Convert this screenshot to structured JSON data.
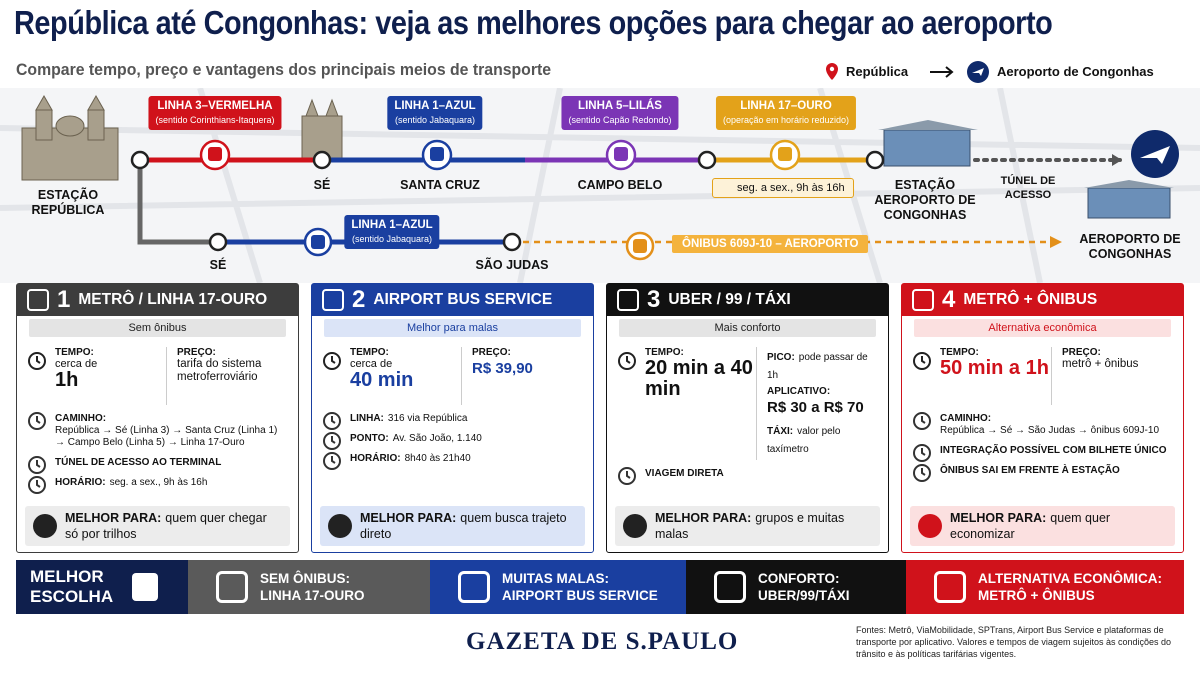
{
  "header": {
    "title": "República até Congonhas: veja as melhores opções para chegar ao aeroporto",
    "subtitle": "Compare tempo, preço e vantagens dos principais meios de transporte",
    "origin": "República",
    "destination": "Aeroporto de Congonhas"
  },
  "map": {
    "lines": [
      {
        "name": "LINHA 3–VERMELHA",
        "note": "(sentido Corinthians-Itaquera)"
      },
      {
        "name": "LINHA 1–AZUL",
        "note": "(sentido Jabaquara)"
      },
      {
        "name": "LINHA 5–LILÁS",
        "note": "(sentido Capão Redondo)"
      },
      {
        "name": "LINHA 17–OURO",
        "note": "(operação em horário reduzido)"
      },
      {
        "name": "LINHA 1–AZUL",
        "note": "(sentido Jabaquara)"
      }
    ],
    "stations": [
      "ESTAÇÃO REPÚBLICA",
      "SÉ",
      "SANTA CRUZ",
      "CAMPO BELO",
      "ESTAÇÃO AEROPORTO DE CONGONHAS",
      "SÉ",
      "SÃO JUDAS",
      "AEROPORTO DE CONGONHAS"
    ],
    "schedule": "seg. a sex., 9h às 16h",
    "tunnel": "TÚNEL DE ACESSO",
    "bus": "ÔNIBUS 609J-10 – AEROPORTO"
  },
  "cards": [
    {
      "number": "1",
      "title": "METRÔ / LINHA 17-OURO",
      "tag": "Sem ônibus",
      "stats": [
        [
          {
            "label": "TEMPO:",
            "pre": "cerca de",
            "big": "1h"
          }
        ],
        [
          {
            "label": "PREÇO:",
            "text": "tarifa do sistema metroferroviário"
          }
        ]
      ],
      "items": [
        {
          "label": "CAMINHO:",
          "text": "República → Sé (Linha 3) → Santa Cruz (Linha 1) → Campo Belo (Linha 5) → Linha 17-Ouro"
        },
        {
          "label": "TÚNEL DE ACESSO AO TERMINAL"
        },
        {
          "label": "HORÁRIO:",
          "text": "seg. a sex., 9h às 16h"
        }
      ],
      "best": {
        "label": "MELHOR PARA:",
        "text": "quem quer chegar só por trilhos"
      }
    },
    {
      "number": "2",
      "title": "AIRPORT BUS SERVICE",
      "tag": "Melhor para malas",
      "stats": [
        [
          {
            "label": "TEMPO:",
            "pre": "cerca de",
            "big": "40 min"
          }
        ],
        [
          {
            "label": "PREÇO:",
            "big": "R$ 39,90"
          }
        ]
      ],
      "items": [
        {
          "label": "LINHA:",
          "text": "316 via República"
        },
        {
          "label": "PONTO:",
          "text": "Av. São João, 1.140"
        },
        {
          "label": "HORÁRIO:",
          "text": "8h40 às 21h40"
        }
      ],
      "best": {
        "label": "MELHOR PARA:",
        "text": "quem busca trajeto direto"
      }
    },
    {
      "number": "3",
      "title": "UBER / 99 / TÁXI",
      "tag": "Mais conforto",
      "stats": [
        [
          {
            "label": "TEMPO:",
            "big": "20 min a 40 min"
          }
        ],
        [
          {
            "label": "PICO:",
            "text": "pode passar de 1h"
          },
          {
            "label": "APLICATIVO:",
            "big": "R$ 30 a R$ 70"
          },
          {
            "label": "TÁXI:",
            "text": "valor pelo taxímetro"
          }
        ]
      ],
      "items": [
        {
          "label": "VIAGEM DIRETA"
        }
      ],
      "best": {
        "label": "MELHOR PARA:",
        "text": "grupos e muitas malas"
      }
    },
    {
      "number": "4",
      "title": "METRÔ + ÔNIBUS",
      "tag": "Alternativa econômica",
      "stats": [
        [
          {
            "label": "TEMPO:",
            "big": "50 min a 1h"
          }
        ],
        [
          {
            "label": "PREÇO:",
            "text": "metrô + ônibus"
          }
        ]
      ],
      "items": [
        {
          "label": "CAMINHO:",
          "text": "República → Sé → São Judas → ônibus 609J-10"
        },
        {
          "label": "INTEGRAÇÃO POSSÍVEL COM BILHETE ÚNICO"
        },
        {
          "label": "ÔNIBUS SAI EM FRENTE À ESTAÇÃO"
        }
      ],
      "best": {
        "label": "MELHOR PARA:",
        "text": "quem quer economizar"
      }
    }
  ],
  "summary": {
    "title": "MELHOR ESCOLHA",
    "items": [
      {
        "label": "SEM ÔNIBUS:",
        "value": "LINHA 17-OURO"
      },
      {
        "label": "MUITAS MALAS:",
        "value": "AIRPORT BUS SERVICE"
      },
      {
        "label": "CONFORTO:",
        "value": "UBER/99/TÁXI"
      },
      {
        "label": "ALTERNATIVA ECONÔMICA:",
        "value": "METRÔ + ÔNIBUS"
      }
    ]
  },
  "footer": {
    "brand": "GAZETA DE S.PAULO",
    "sources": "Fontes: Metrô, ViaMobilidade, SPTrans, Airport Bus Service e plataformas de transporte por aplicativo. Valores e tempos de viagem sujeitos às condições do trânsito e às políticas tarifárias vigentes."
  }
}
